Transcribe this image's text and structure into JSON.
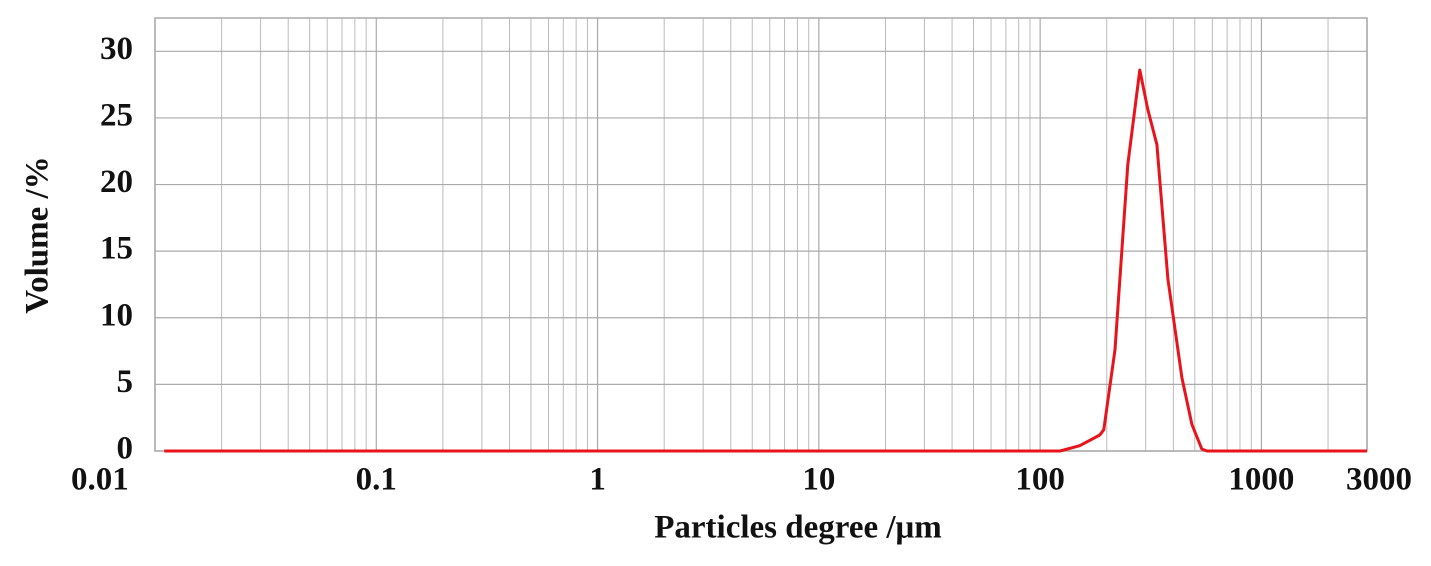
{
  "chart_data": {
    "type": "line",
    "xlabel": "Particles degree /μm",
    "ylabel": "Volume /%",
    "x": [
      0.011,
      123,
      151,
      186,
      194,
      218,
      249,
      282,
      307,
      337,
      378,
      437,
      485,
      538,
      567,
      3000
    ],
    "series": [
      {
        "name": "Volume",
        "color": "#e8141c",
        "values": [
          0,
          0,
          0.4,
          1.2,
          1.6,
          7.6,
          21.5,
          28.6,
          25.6,
          23,
          12.9,
          5.5,
          2,
          0.15,
          0,
          0
        ]
      }
    ],
    "xscale": "log",
    "xlim": [
      0.01,
      3000
    ],
    "xticks": [
      0.01,
      0.1,
      1,
      10,
      100,
      1000,
      3000
    ],
    "xminorticks": [
      0.02,
      0.03,
      0.04,
      0.05,
      0.06,
      0.07,
      0.08,
      0.09,
      0.2,
      0.3,
      0.4,
      0.5,
      0.6,
      0.7,
      0.8,
      0.9,
      2,
      3,
      4,
      5,
      6,
      7,
      8,
      9,
      20,
      30,
      40,
      50,
      60,
      70,
      80,
      90,
      200,
      300,
      400,
      500,
      600,
      700,
      800,
      900,
      2000
    ],
    "ylim": [
      0,
      32.5
    ],
    "yticks": [
      0,
      5,
      10,
      15,
      20,
      25,
      30
    ],
    "grid": true
  }
}
